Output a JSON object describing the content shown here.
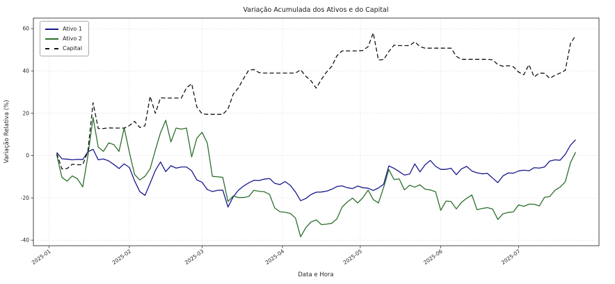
{
  "chart_data": {
    "type": "line",
    "title": "Variação Acumulada dos Ativos e do Capital",
    "xlabel": "Data e Hora",
    "ylabel": "Variação Relativa (%)",
    "grid": "dotted",
    "legend_position": "upper left",
    "x_unit": "days since 2025-01-01",
    "x_start_day": 3,
    "x_step_days": 2,
    "xlim_days": [
      -6,
      212
    ],
    "ylim": [
      -42.6,
      65
    ],
    "y_ticks": [
      60,
      40,
      20,
      0,
      -20,
      -40
    ],
    "x_ticks": [
      {
        "day": 0,
        "label": "2025-01"
      },
      {
        "day": 31,
        "label": "2025-02"
      },
      {
        "day": 59,
        "label": "2025-03"
      },
      {
        "day": 90,
        "label": "2025-04"
      },
      {
        "day": 120,
        "label": "2025-05"
      },
      {
        "day": 151,
        "label": "2025-06"
      },
      {
        "day": 181,
        "label": "2025-07"
      }
    ],
    "colors": {
      "grid": "#cfcfcf",
      "spine": "#444444",
      "tick": "#333333",
      "text": "#262626",
      "background": "#ffffff"
    },
    "series": [
      {
        "name": "Ativo 1",
        "color": "#16168c",
        "line_style": "solid",
        "values": [
          1.5,
          -1.5,
          -1.7,
          -2.0,
          -1.8,
          -1.9,
          1.8,
          3.0,
          -2.0,
          -1.6,
          -2.5,
          -4.2,
          -6.1,
          -3.9,
          -5.6,
          -11.9,
          -17.0,
          -18.8,
          -13.1,
          -7.0,
          -3.0,
          -7.6,
          -4.8,
          -5.9,
          -5.4,
          -5.4,
          -7.2,
          -11.5,
          -12.6,
          -16.0,
          -17.0,
          -16.4,
          -16.3,
          -24.3,
          -19.5,
          -16.4,
          -14.4,
          -12.9,
          -11.7,
          -11.8,
          -11.1,
          -10.8,
          -13.1,
          -13.7,
          -12.3,
          -14.0,
          -17.2,
          -21.3,
          -20.3,
          -18.4,
          -17.3,
          -17.2,
          -16.8,
          -15.9,
          -14.6,
          -14.3,
          -15.2,
          -15.6,
          -14.4,
          -15.2,
          -15.4,
          -16.5,
          -15.3,
          -13.5,
          -4.9,
          -6.0,
          -7.6,
          -9.2,
          -8.7,
          -3.9,
          -7.7,
          -4.3,
          -2.3,
          -5.1,
          -6.5,
          -6.5,
          -6.0,
          -9.0,
          -6.3,
          -5.1,
          -7.3,
          -8.1,
          -8.6,
          -8.4,
          -10.6,
          -12.8,
          -9.6,
          -8.2,
          -8.3,
          -7.3,
          -6.9,
          -7.2,
          -5.7,
          -5.9,
          -5.4,
          -2.6,
          -2.0,
          -2.2,
          0.6,
          4.9,
          7.5
        ]
      },
      {
        "name": "Ativo 2",
        "color": "#2c6e2c",
        "line_style": "solid",
        "values": [
          0.3,
          -10.3,
          -12.1,
          -9.6,
          -11.0,
          -14.8,
          -0.2,
          18.0,
          4.0,
          2.0,
          6.0,
          5.2,
          2.0,
          13.1,
          1.5,
          -8.9,
          -11.5,
          -9.8,
          -6.2,
          2.6,
          10.8,
          16.7,
          6.5,
          13.0,
          12.5,
          13.0,
          -0.6,
          8.2,
          11.0,
          6.0,
          -9.8,
          -10.0,
          -10.3,
          -21.7,
          -19.1,
          -19.8,
          -19.8,
          -19.3,
          -16.4,
          -16.9,
          -17.1,
          -18.3,
          -24.7,
          -26.5,
          -26.8,
          -27.3,
          -29.5,
          -38.4,
          -34.0,
          -31.4,
          -30.4,
          -32.6,
          -32.4,
          -32.0,
          -29.9,
          -24.3,
          -21.9,
          -20.1,
          -22.4,
          -19.9,
          -16.3,
          -20.8,
          -22.4,
          -15.0,
          -6.6,
          -11.3,
          -11.0,
          -16.2,
          -14.0,
          -14.9,
          -13.8,
          -15.9,
          -16.2,
          -17.1,
          -25.9,
          -21.5,
          -21.7,
          -25.2,
          -22.1,
          -20.2,
          -18.6,
          -25.6,
          -25.0,
          -24.6,
          -25.3,
          -30.2,
          -27.5,
          -26.9,
          -26.6,
          -23.3,
          -24.0,
          -23.0,
          -23.0,
          -23.8,
          -19.7,
          -19.4,
          -16.4,
          -14.9,
          -12.4,
          -3.3,
          1.6
        ]
      },
      {
        "name": "Capital",
        "color": "#111111",
        "line_style": "dashed",
        "values": [
          1.0,
          -6.3,
          -6.1,
          -4.1,
          -4.3,
          -4.3,
          2.0,
          25.0,
          12.8,
          12.8,
          13.1,
          13.0,
          13.0,
          13.0,
          14.2,
          16.2,
          13.3,
          14.1,
          28.0,
          20.0,
          27.3,
          27.2,
          27.2,
          27.2,
          27.2,
          32.0,
          34.0,
          23.0,
          19.8,
          19.5,
          19.5,
          19.5,
          19.5,
          22.0,
          29.0,
          32.0,
          36.4,
          40.4,
          40.7,
          39.2,
          39.0,
          39.0,
          39.0,
          39.0,
          39.0,
          39.0,
          39.0,
          40.6,
          37.5,
          35.4,
          31.9,
          36.0,
          39.5,
          42.2,
          47.2,
          49.5,
          49.5,
          49.5,
          49.5,
          49.7,
          51.5,
          58.0,
          45.2,
          45.4,
          49.2,
          52.2,
          52.0,
          52.0,
          52.0,
          53.8,
          51.5,
          50.8,
          50.8,
          50.8,
          50.8,
          50.8,
          50.8,
          46.9,
          45.5,
          45.5,
          45.5,
          45.5,
          45.5,
          45.5,
          45.3,
          43.0,
          42.2,
          42.5,
          42.0,
          39.5,
          38.2,
          43.0,
          37.2,
          39.0,
          38.9,
          36.5,
          38.0,
          39.0,
          40.3,
          53.0,
          56.7
        ]
      }
    ]
  }
}
